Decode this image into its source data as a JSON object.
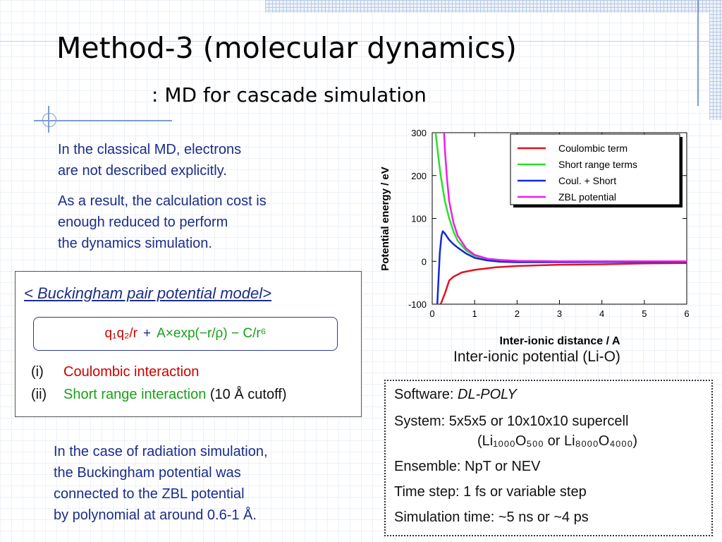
{
  "slide": {
    "title": "Method-3 (molecular dynamics)",
    "subtitle": ": MD for cascade simulation"
  },
  "intro": {
    "lines": [
      "In the classical MD, electrons",
      "are not described explicitly.",
      "As a result, the calculation cost is",
      "enough reduced to perform",
      "the dynamics simulation."
    ]
  },
  "buckingham": {
    "heading": "< Buckingham pair potential model>",
    "formula_coulomb": "q₁q₂/r",
    "formula_plus": "+",
    "formula_short": "A×exp(−r/ρ) − C/r⁶",
    "items": [
      {
        "num": "(i)",
        "label": "Coulombic interaction",
        "suffix": ""
      },
      {
        "num": "(ii)",
        "label": "Short range interaction",
        "suffix": " (10 Å cutoff)"
      }
    ]
  },
  "radiation": {
    "lines": [
      "In the case of radiation simulation,",
      "the Buckingham potential was",
      "connected to the ZBL potential",
      "by polynomial at around 0.6-1 Å."
    ]
  },
  "settings": {
    "software_label": "Software: ",
    "software_value": "DL-POLY",
    "system": "System: 5x5x5 or 10x10x10 supercell",
    "system_formula": "(Li₁₀₀₀O₅₀₀ or Li₈₀₀₀O₄₀₀₀)",
    "ensemble": "Ensemble: NpT or NEV",
    "timestep": "Time step: 1 fs or variable step",
    "simtime": "Simulation time:  ~5 ns or ~4 ps"
  },
  "chart_caption": "Inter-ionic potential (Li-O)",
  "colors": {
    "coulombic": "#e0141e",
    "short_range": "#2adf2a",
    "coul_short": "#1428d8",
    "zbl": "#ee1ee8"
  },
  "chart_data": {
    "type": "line",
    "xlabel": "Inter-ionic distance  /  A",
    "ylabel": "Potential energy  /  eV",
    "xlim": [
      0,
      6
    ],
    "ylim": [
      -100,
      300
    ],
    "xticks": [
      0,
      1,
      2,
      3,
      4,
      5,
      6
    ],
    "yticks": [
      -100,
      0,
      100,
      200,
      300
    ],
    "legend_position": "top-right",
    "series": [
      {
        "name": "Coulombic term",
        "color": "#e0141e",
        "x": [
          0.2,
          0.3,
          0.4,
          0.5,
          0.7,
          1.0,
          1.5,
          2.0,
          3.0,
          4.0,
          5.0,
          6.0
        ],
        "y": [
          -100,
          -75,
          -45,
          -36,
          -26,
          -20,
          -14,
          -11,
          -8,
          -7,
          -5,
          -4
        ]
      },
      {
        "name": "Short range terms",
        "color": "#2adf2a",
        "x": [
          0.08,
          0.15,
          0.2,
          0.3,
          0.4,
          0.5,
          0.6,
          0.8,
          1.0,
          1.3,
          1.6,
          2.0,
          3.0,
          6.0
        ],
        "y": [
          300,
          240,
          200,
          140,
          100,
          70,
          48,
          25,
          13,
          6,
          3,
          1,
          0,
          0
        ]
      },
      {
        "name": "Coul. + Short",
        "color": "#1428d8",
        "x": [
          0.12,
          0.15,
          0.18,
          0.22,
          0.25,
          0.3,
          0.35,
          0.4,
          0.5,
          0.6,
          0.8,
          1.0,
          1.3,
          1.6,
          2.0,
          3.0,
          6.0
        ],
        "y": [
          -100,
          -40,
          20,
          60,
          70,
          65,
          57,
          50,
          40,
          32,
          18,
          8,
          2,
          -1,
          -2,
          -2,
          -1
        ]
      },
      {
        "name": "ZBL potential",
        "color": "#ee1ee8",
        "x": [
          0.28,
          0.3,
          0.35,
          0.4,
          0.5,
          0.6,
          0.8,
          1.0,
          1.3,
          1.6,
          2.0,
          3.0,
          6.0
        ],
        "y": [
          300,
          260,
          190,
          140,
          90,
          60,
          30,
          15,
          6,
          3,
          1,
          0,
          0
        ]
      }
    ]
  }
}
